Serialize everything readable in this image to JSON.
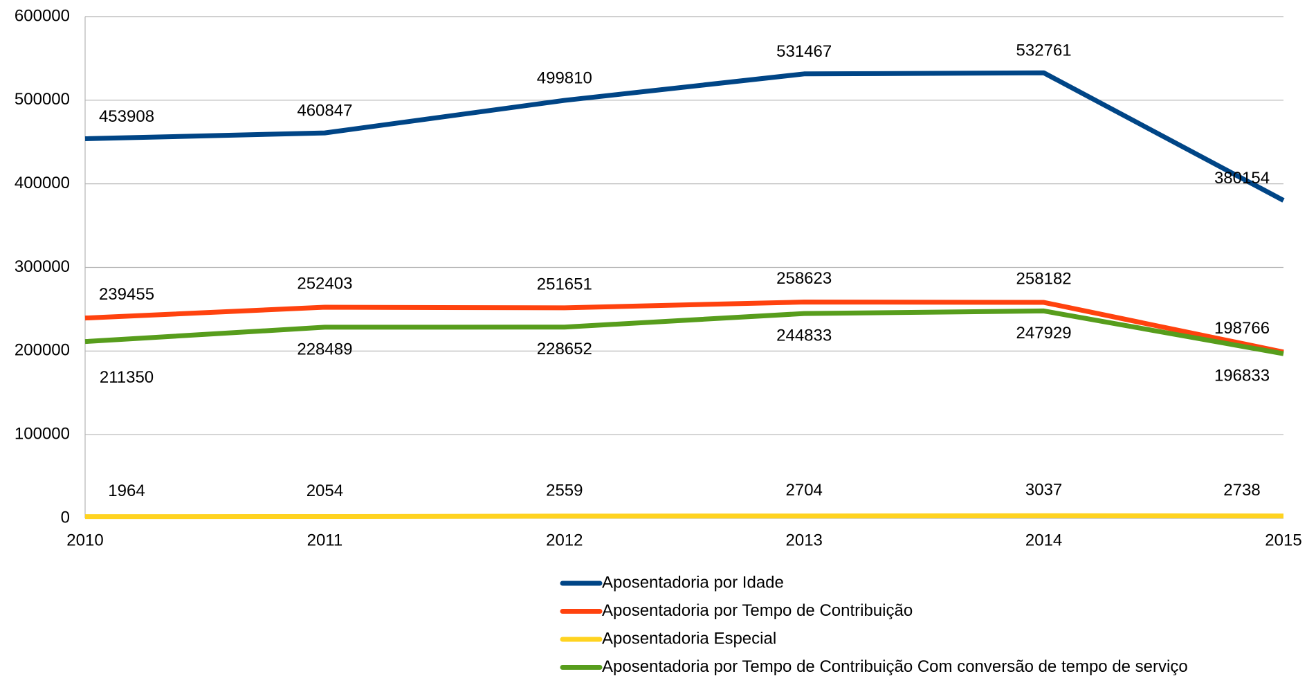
{
  "chart_data": {
    "type": "line",
    "x": [
      2010,
      2011,
      2012,
      2013,
      2014,
      2015
    ],
    "xlim": [
      2010,
      2015
    ],
    "xticks": [
      2010,
      2011,
      2012,
      2013,
      2014,
      2015
    ],
    "ylim": [
      0,
      600000
    ],
    "yticks": [
      0,
      100000,
      200000,
      300000,
      400000,
      500000,
      600000
    ],
    "grid": true,
    "legend": "bottom",
    "series": [
      {
        "name": "Aposentadoria por Idade",
        "color": "#004586",
        "values": [
          453908,
          460847,
          499810,
          531467,
          532761,
          380154
        ]
      },
      {
        "name": "Aposentadoria por Tempo de Contribuição",
        "color": "#ff420e",
        "values": [
          239455,
          252403,
          251651,
          258623,
          258182,
          198766
        ]
      },
      {
        "name": "Aposentadoria Especial",
        "color": "#ffd320",
        "values": [
          1964,
          2054,
          2559,
          2704,
          3037,
          2738
        ]
      },
      {
        "name": "Aposentadoria por Tempo de Contribuição Com conversão de tempo de serviço",
        "color": "#579d1c",
        "values": [
          211350,
          228489,
          228652,
          244833,
          247929,
          196833
        ]
      }
    ]
  }
}
